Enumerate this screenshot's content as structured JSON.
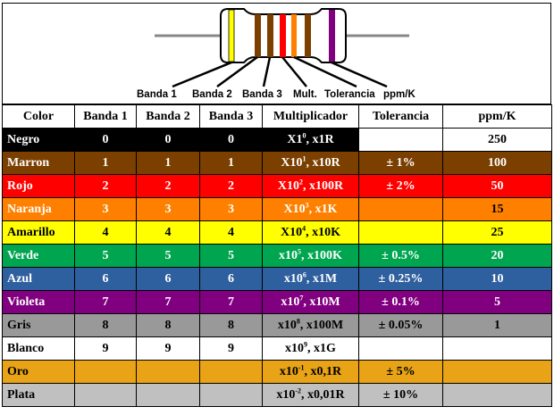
{
  "band_labels": [
    "Banda 1",
    "Banda 2",
    "Banda 3",
    "Mult.",
    "Tolerancia",
    "ppm/K"
  ],
  "headers": [
    "Color",
    "Banda 1",
    "Banda 2",
    "Banda 3",
    "Multiplicador",
    "Tolerancia",
    "ppm/K"
  ],
  "rows": [
    {
      "color": "Negro",
      "bg": "#000000",
      "fg": "#ffffff",
      "b1": "0",
      "b2": "0",
      "b3": "0",
      "mult": "X1",
      "mult_exp": "0",
      "mult_alt": ", x1R",
      "tol": "",
      "ppm": "250",
      "tol_bg": "#ffffff",
      "ppm_bg": "#ffffff",
      "ppm_fg": "#000000"
    },
    {
      "color": "Marron",
      "bg": "#7b3f00",
      "fg": "#ffffff",
      "b1": "1",
      "b2": "1",
      "b3": "1",
      "mult": "X10",
      "mult_exp": "1",
      "mult_alt": ", x10R",
      "tol": "± 1%",
      "ppm": "100",
      "tol_bg": "#7b3f00",
      "ppm_bg": "#7b3f00",
      "ppm_fg": "#ffffff"
    },
    {
      "color": "Rojo",
      "bg": "#ff0000",
      "fg": "#ffffff",
      "b1": "2",
      "b2": "2",
      "b3": "2",
      "mult": "X10",
      "mult_exp": "2",
      "mult_alt": ", x100R",
      "tol": "± 2%",
      "ppm": "50",
      "tol_bg": "#ff0000",
      "ppm_bg": "#ff0000",
      "ppm_fg": "#ffffff"
    },
    {
      "color": "Naranja",
      "bg": "#ff8000",
      "fg": "#ffffff",
      "b1": "3",
      "b2": "3",
      "b3": "3",
      "mult": "X10",
      "mult_exp": "3",
      "mult_alt": ", x1K",
      "tol": "",
      "ppm": "15",
      "tol_bg": "#ff8000",
      "ppm_bg": "#ff8000",
      "ppm_fg": "#000000"
    },
    {
      "color": "Amarillo",
      "bg": "#ffff00",
      "fg": "#000000",
      "b1": "4",
      "b2": "4",
      "b3": "4",
      "mult": "X10",
      "mult_exp": "4",
      "mult_alt": ", x10K",
      "tol": "",
      "ppm": "25",
      "tol_bg": "#ffff00",
      "ppm_bg": "#ffff00",
      "ppm_fg": "#000000"
    },
    {
      "color": "Verde",
      "bg": "#00a550",
      "fg": "#ffffff",
      "b1": "5",
      "b2": "5",
      "b3": "5",
      "mult": "x10",
      "mult_exp": "5",
      "mult_alt": ", x100K",
      "tol": "± 0.5%",
      "ppm": "20",
      "tol_bg": "#00a550",
      "ppm_bg": "#00a550",
      "ppm_fg": "#ffffff"
    },
    {
      "color": "Azul",
      "bg": "#2e5f9e",
      "fg": "#ffffff",
      "b1": "6",
      "b2": "6",
      "b3": "6",
      "mult": "x10",
      "mult_exp": "6",
      "mult_alt": ", x1M",
      "tol": "± 0.25%",
      "ppm": "10",
      "tol_bg": "#2e5f9e",
      "ppm_bg": "#2e5f9e",
      "ppm_fg": "#ffffff"
    },
    {
      "color": "Violeta",
      "bg": "#800080",
      "fg": "#ffffff",
      "b1": "7",
      "b2": "7",
      "b3": "7",
      "mult": "x10",
      "mult_exp": "7",
      "mult_alt": ", x10M",
      "tol": "± 0.1%",
      "ppm": "5",
      "tol_bg": "#800080",
      "ppm_bg": "#800080",
      "ppm_fg": "#ffffff"
    },
    {
      "color": "Gris",
      "bg": "#999999",
      "fg": "#000000",
      "b1": "8",
      "b2": "8",
      "b3": "8",
      "mult": "x10",
      "mult_exp": "8",
      "mult_alt": ", x100M",
      "tol": "± 0.05%",
      "ppm": "1",
      "tol_bg": "#999999",
      "ppm_bg": "#999999",
      "ppm_fg": "#000000"
    },
    {
      "color": "Blanco",
      "bg": "#ffffff",
      "fg": "#000000",
      "b1": "9",
      "b2": "9",
      "b3": "9",
      "mult": "x10",
      "mult_exp": "9",
      "mult_alt": ", x1G",
      "tol": "",
      "ppm": "",
      "tol_bg": "#ffffff",
      "ppm_bg": "#ffffff",
      "ppm_fg": "#000000"
    },
    {
      "color": "Oro",
      "bg": "#e8a317",
      "fg": "#000000",
      "b1": "",
      "b2": "",
      "b3": "",
      "mult": "x10",
      "mult_exp": "-1",
      "mult_alt": ", x0,1R",
      "tol": "± 5%",
      "ppm": "",
      "tol_bg": "#e8a317",
      "ppm_bg": "#e8a317",
      "ppm_fg": "#000000"
    },
    {
      "color": "Plata",
      "bg": "#c0c0c0",
      "fg": "#000000",
      "b1": "",
      "b2": "",
      "b3": "",
      "mult": "x10",
      "mult_exp": "-2",
      "mult_alt": ", x0,01R",
      "tol": "± 10%",
      "ppm": "",
      "tol_bg": "#c0c0c0",
      "ppm_bg": "#c0c0c0",
      "ppm_fg": "#000000"
    }
  ]
}
